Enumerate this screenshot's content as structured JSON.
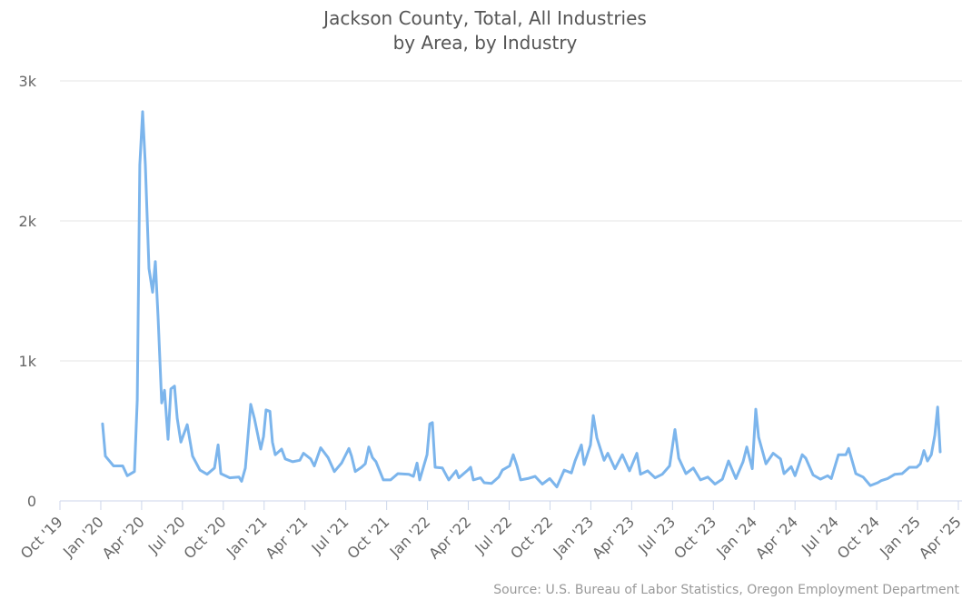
{
  "chart_data": {
    "type": "line",
    "title": "Jackson County, Total, All Industries",
    "subtitle": "by Area, by Industry",
    "source": "Source: U.S. Bureau of Labor Statistics, Oregon Employment Department",
    "color": "#7cb5ec",
    "grid": true,
    "x": [
      2020.011,
      2020.028,
      2020.078,
      2020.134,
      2020.162,
      2020.206,
      2020.223,
      2020.239,
      2020.256,
      2020.273,
      2020.295,
      2020.317,
      2020.334,
      2020.351,
      2020.373,
      2020.39,
      2020.412,
      2020.429,
      2020.451,
      2020.468,
      2020.49,
      2020.529,
      2020.562,
      2020.607,
      2020.651,
      2020.696,
      2020.718,
      2020.735,
      2020.79,
      2020.846,
      2020.862,
      2020.885,
      2020.918,
      2020.94,
      2020.979,
      2020.996,
      2021.012,
      2021.035,
      2021.051,
      2021.068,
      2021.107,
      2021.129,
      2021.174,
      2021.218,
      2021.241,
      2021.285,
      2021.307,
      2021.346,
      2021.391,
      2021.43,
      2021.474,
      2021.519,
      2021.535,
      2021.558,
      2021.596,
      2021.619,
      2021.641,
      2021.663,
      2021.685,
      2021.73,
      2021.774,
      2021.819,
      2021.886,
      2021.914,
      2021.936,
      2021.952,
      2021.997,
      2022.014,
      2022.03,
      2022.047,
      2022.091,
      2022.13,
      2022.175,
      2022.192,
      2022.242,
      2022.264,
      2022.281,
      2022.325,
      2022.347,
      2022.392,
      2022.436,
      2022.459,
      2022.503,
      2022.525,
      2022.548,
      2022.57,
      2022.614,
      2022.659,
      2022.703,
      2022.748,
      2022.792,
      2022.837,
      2022.881,
      2022.903,
      2022.942,
      2022.959,
      2022.998,
      2023.015,
      2023.037,
      2023.081,
      2023.104,
      2023.148,
      2023.193,
      2023.237,
      2023.282,
      2023.304,
      2023.348,
      2023.393,
      2023.437,
      2023.482,
      2023.515,
      2023.538,
      2023.582,
      2023.627,
      2023.671,
      2023.716,
      2023.76,
      2023.805,
      2023.843,
      2023.888,
      2023.932,
      2023.955,
      2023.988,
      2024.01,
      2024.027,
      2024.072,
      2024.116,
      2024.161,
      2024.183,
      2024.227,
      2024.25,
      2024.294,
      2024.316,
      2024.361,
      2024.405,
      2024.45,
      2024.472,
      2024.516,
      2024.561,
      2024.578,
      2024.622,
      2024.667,
      2024.711,
      2024.756,
      2024.778,
      2024.817,
      2024.861,
      2024.906,
      2024.95,
      2024.995,
      2025.017,
      2025.039,
      2025.061,
      2025.084,
      2025.106,
      2025.123,
      2025.139
    ],
    "values": [
      550,
      320,
      250,
      250,
      180,
      210,
      720,
      2400,
      2780,
      2400,
      1660,
      1490,
      1710,
      1300,
      700,
      790,
      440,
      800,
      820,
      590,
      420,
      545,
      320,
      220,
      190,
      235,
      400,
      195,
      165,
      170,
      140,
      235,
      690,
      590,
      370,
      460,
      650,
      640,
      420,
      330,
      370,
      300,
      280,
      290,
      340,
      300,
      250,
      380,
      310,
      210,
      270,
      375,
      320,
      210,
      240,
      265,
      385,
      310,
      280,
      150,
      150,
      195,
      190,
      175,
      270,
      150,
      330,
      550,
      560,
      240,
      235,
      150,
      215,
      165,
      215,
      240,
      150,
      165,
      130,
      125,
      170,
      220,
      250,
      330,
      250,
      150,
      160,
      175,
      120,
      160,
      100,
      220,
      200,
      285,
      400,
      260,
      400,
      610,
      450,
      290,
      340,
      230,
      330,
      215,
      340,
      190,
      215,
      165,
      190,
      250,
      510,
      305,
      195,
      235,
      150,
      170,
      120,
      155,
      285,
      160,
      280,
      385,
      230,
      655,
      455,
      265,
      340,
      300,
      195,
      245,
      180,
      330,
      305,
      185,
      155,
      180,
      160,
      330,
      330,
      375,
      195,
      170,
      110,
      130,
      145,
      160,
      190,
      195,
      240,
      240,
      265,
      360,
      285,
      330,
      470,
      670,
      350
    ],
    "xlim": [
      2019.75,
      2025.25
    ],
    "xticks": [
      {
        "value": 2019.75,
        "label": "Oct '19"
      },
      {
        "value": 2020.0,
        "label": "Jan '20"
      },
      {
        "value": 2020.25,
        "label": "Apr '20"
      },
      {
        "value": 2020.5,
        "label": "Jul '20"
      },
      {
        "value": 2020.75,
        "label": "Oct '20"
      },
      {
        "value": 2021.0,
        "label": "Jan '21"
      },
      {
        "value": 2021.25,
        "label": "Apr '21"
      },
      {
        "value": 2021.5,
        "label": "Jul '21"
      },
      {
        "value": 2021.75,
        "label": "Oct '21"
      },
      {
        "value": 2022.0,
        "label": "Jan '22"
      },
      {
        "value": 2022.25,
        "label": "Apr '22"
      },
      {
        "value": 2022.5,
        "label": "Jul '22"
      },
      {
        "value": 2022.75,
        "label": "Oct '22"
      },
      {
        "value": 2023.0,
        "label": "Jan '23"
      },
      {
        "value": 2023.25,
        "label": "Apr '23"
      },
      {
        "value": 2023.5,
        "label": "Jul '23"
      },
      {
        "value": 2023.75,
        "label": "Oct '23"
      },
      {
        "value": 2024.0,
        "label": "Jan '24"
      },
      {
        "value": 2024.25,
        "label": "Apr '24"
      },
      {
        "value": 2024.5,
        "label": "Jul '24"
      },
      {
        "value": 2024.75,
        "label": "Oct '24"
      },
      {
        "value": 2025.0,
        "label": "Jan '25"
      },
      {
        "value": 2025.25,
        "label": "Apr '25"
      }
    ],
    "ylim": [
      0,
      3000
    ],
    "yticks": [
      0,
      {
        "value": 1000,
        "label": "1k"
      },
      {
        "value": 2000,
        "label": "2k"
      },
      {
        "value": 3000,
        "label": "3k"
      }
    ]
  }
}
